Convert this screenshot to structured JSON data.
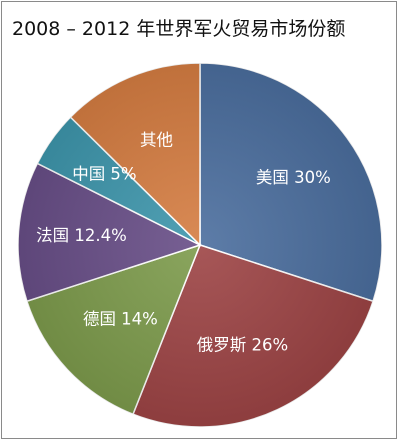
{
  "chart_data": {
    "type": "pie",
    "title": "2008 – 2012 年世界军火贸易市场份额",
    "categories": [
      "美国",
      "俄罗斯",
      "德国",
      "法国",
      "中国",
      "其他"
    ],
    "values": [
      30,
      26,
      14,
      12.4,
      5,
      12.6
    ],
    "labels": [
      "美国 30%",
      "俄罗斯 26%",
      "德国 14%",
      "法国 12.4%",
      "中国 5%",
      "其他"
    ],
    "colors": [
      "#4B6E9E",
      "#9D4445",
      "#7D9B4C",
      "#684E87",
      "#3E96AC",
      "#D57D42"
    ],
    "legend": "none",
    "grid": false
  }
}
